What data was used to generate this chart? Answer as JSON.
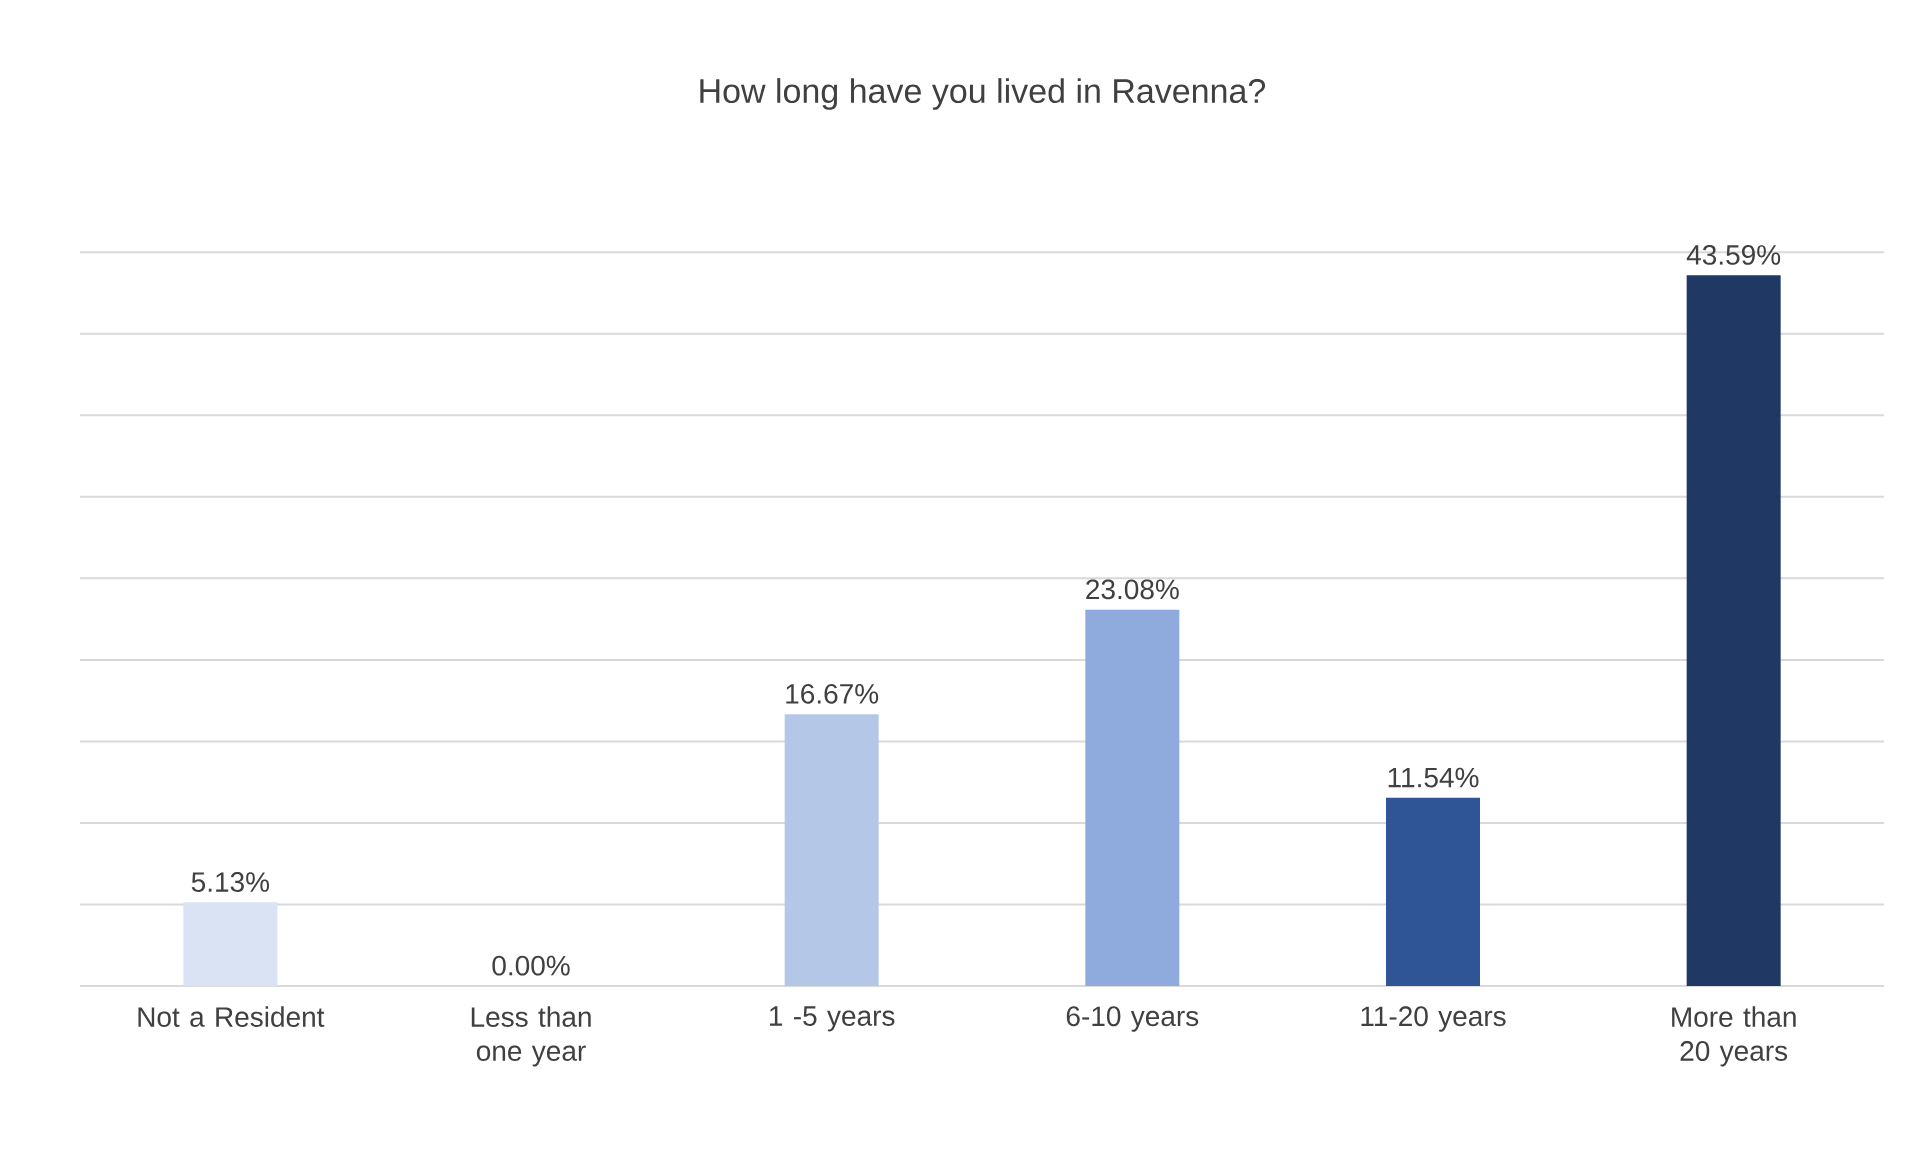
{
  "chart_data": {
    "type": "bar",
    "title": "How long have you lived in Ravenna?",
    "categories": [
      "Not a Resident",
      "Less than one year",
      "1 -5 years",
      "6-10 years",
      "11-20 years",
      "More than 20 years"
    ],
    "values": [
      5.13,
      0.0,
      16.67,
      23.08,
      11.54,
      43.59
    ],
    "value_labels": [
      "5.13%",
      "0.00%",
      "16.67%",
      "23.08%",
      "11.54%",
      "43.59%"
    ],
    "colors": [
      "#dae3f3",
      "#c9d7ee",
      "#b4c7e7",
      "#8faadc",
      "#2f5597",
      "#203864"
    ],
    "grid": "y",
    "tick_labels": "x"
  }
}
